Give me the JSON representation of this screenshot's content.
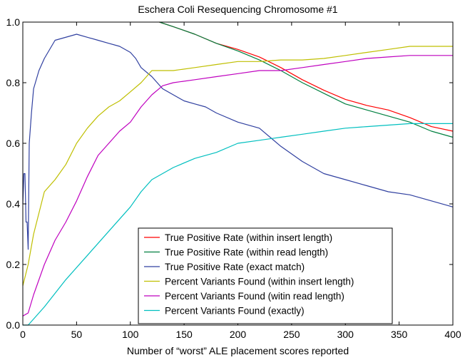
{
  "chart_data": {
    "type": "line",
    "title": "Eschera Coli Resequencing Chromosome #1",
    "xlabel": "Number of “worst” ALE placement scores reported",
    "ylabel": "",
    "xlim": [
      0,
      400
    ],
    "ylim": [
      0.0,
      1.0
    ],
    "xticks": [
      "0",
      "50",
      "100",
      "150",
      "200",
      "250",
      "300",
      "350",
      "400"
    ],
    "yticks": [
      "0.0",
      "0.2",
      "0.4",
      "0.6",
      "0.8",
      "1.0"
    ],
    "grid": false,
    "legend_position": "bottom-center",
    "series": [
      {
        "name": "True Positive Rate (within insert length)",
        "color": "#ff0000",
        "x": [
          127,
          140,
          160,
          180,
          200,
          220,
          240,
          260,
          280,
          300,
          320,
          340,
          360,
          380,
          400
        ],
        "y": [
          1.0,
          0.985,
          0.96,
          0.93,
          0.91,
          0.885,
          0.85,
          0.81,
          0.775,
          0.745,
          0.725,
          0.71,
          0.685,
          0.655,
          0.64
        ]
      },
      {
        "name": "True Positive Rate (within read length)",
        "color": "#008040",
        "x": [
          127,
          140,
          160,
          180,
          200,
          220,
          240,
          260,
          280,
          300,
          320,
          340,
          360,
          380,
          400
        ],
        "y": [
          1.0,
          0.985,
          0.96,
          0.93,
          0.905,
          0.875,
          0.84,
          0.8,
          0.765,
          0.73,
          0.71,
          0.69,
          0.67,
          0.64,
          0.62
        ]
      },
      {
        "name": "True Positive Rate (exact match)",
        "color": "#3040a0",
        "x": [
          0,
          1,
          2,
          3,
          4,
          5,
          6,
          8,
          10,
          15,
          20,
          30,
          50,
          60,
          70,
          80,
          90,
          100,
          105,
          110,
          120,
          130,
          140,
          150,
          160,
          170,
          180,
          200,
          220,
          240,
          260,
          280,
          300,
          320,
          340,
          360,
          380,
          400
        ],
        "y": [
          0.4,
          0.5,
          0.5,
          0.34,
          0.34,
          0.25,
          0.6,
          0.7,
          0.78,
          0.84,
          0.88,
          0.94,
          0.96,
          0.95,
          0.94,
          0.93,
          0.92,
          0.9,
          0.88,
          0.85,
          0.82,
          0.78,
          0.76,
          0.74,
          0.73,
          0.72,
          0.7,
          0.67,
          0.65,
          0.59,
          0.54,
          0.5,
          0.48,
          0.46,
          0.44,
          0.43,
          0.41,
          0.39
        ]
      },
      {
        "name": "Percent Variants Found (within insert length)",
        "color": "#bfbf00",
        "x": [
          0,
          5,
          10,
          20,
          30,
          40,
          50,
          60,
          70,
          80,
          90,
          100,
          110,
          120,
          140,
          160,
          180,
          200,
          220,
          240,
          260,
          280,
          300,
          320,
          340,
          360,
          380,
          400
        ],
        "y": [
          0.13,
          0.2,
          0.3,
          0.44,
          0.48,
          0.53,
          0.6,
          0.65,
          0.69,
          0.72,
          0.74,
          0.77,
          0.8,
          0.84,
          0.84,
          0.85,
          0.86,
          0.87,
          0.87,
          0.875,
          0.875,
          0.88,
          0.89,
          0.9,
          0.91,
          0.92,
          0.92,
          0.92
        ]
      },
      {
        "name": "Percent Variants Found (witin read length)",
        "color": "#bf00bf",
        "x": [
          0,
          5,
          10,
          20,
          30,
          40,
          50,
          60,
          70,
          80,
          90,
          100,
          110,
          120,
          130,
          140,
          160,
          180,
          200,
          220,
          240,
          260,
          280,
          300,
          320,
          340,
          360,
          380,
          400
        ],
        "y": [
          0.03,
          0.04,
          0.1,
          0.2,
          0.28,
          0.34,
          0.41,
          0.49,
          0.56,
          0.6,
          0.64,
          0.67,
          0.72,
          0.76,
          0.79,
          0.8,
          0.81,
          0.82,
          0.83,
          0.84,
          0.84,
          0.85,
          0.86,
          0.87,
          0.88,
          0.885,
          0.89,
          0.89,
          0.89
        ]
      },
      {
        "name": "Percent Variants Found (exactly)",
        "color": "#00bfbf",
        "x": [
          0,
          5,
          10,
          20,
          40,
          60,
          80,
          100,
          110,
          120,
          140,
          160,
          180,
          200,
          220,
          240,
          260,
          280,
          300,
          320,
          340,
          360,
          380,
          400
        ],
        "y": [
          0.0,
          0.0,
          0.02,
          0.06,
          0.15,
          0.23,
          0.31,
          0.39,
          0.44,
          0.48,
          0.52,
          0.55,
          0.57,
          0.6,
          0.61,
          0.62,
          0.63,
          0.64,
          0.65,
          0.655,
          0.66,
          0.665,
          0.665,
          0.665
        ]
      }
    ]
  }
}
